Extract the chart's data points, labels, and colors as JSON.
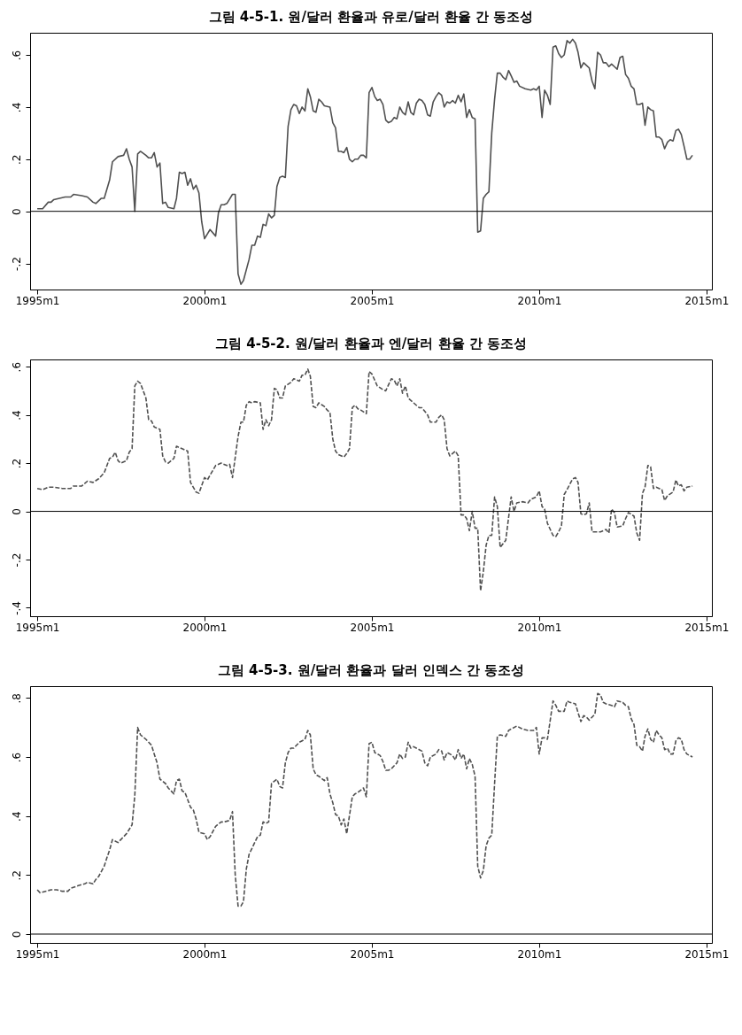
{
  "chart_data": [
    {
      "type": "line",
      "title": "그림 4-5-1. 원/달러 환율과 유로/달러 환율 간 동조성",
      "line_style": "solid",
      "x": [
        "1995-01",
        "1995-03",
        "1995-05",
        "1995-06",
        "1995-07",
        "1995-11",
        "1996-01",
        "1996-02",
        "1996-05",
        "1996-07",
        "1996-09",
        "1996-10",
        "1996-12",
        "1997-01",
        "1997-03",
        "1997-04",
        "1997-06",
        "1997-08",
        "1997-09",
        "1997-10",
        "1997-11",
        "1997-12",
        "1998-01",
        "1998-02",
        "1998-04",
        "1998-05",
        "1998-06",
        "1998-07",
        "1998-08",
        "1998-09",
        "1998-10",
        "1998-11",
        "1998-12",
        "1999-02",
        "1999-03",
        "1999-04",
        "1999-05",
        "1999-06",
        "1999-07",
        "1999-08",
        "1999-09",
        "1999-10",
        "1999-11",
        "1999-12",
        "2000-01",
        "2000-03",
        "2000-05",
        "2000-06",
        "2000-07",
        "2000-08",
        "2000-09",
        "2000-11",
        "2000-12",
        "2001-01",
        "2001-02",
        "2001-03",
        "2001-05",
        "2001-06",
        "2001-07",
        "2001-08",
        "2001-09",
        "2001-10",
        "2001-11",
        "2001-12",
        "2002-01",
        "2002-02",
        "2002-03",
        "2002-04",
        "2002-05",
        "2002-06",
        "2002-07",
        "2002-08",
        "2002-09",
        "2002-10",
        "2002-11",
        "2002-12",
        "2003-01",
        "2003-02",
        "2003-03",
        "2003-04",
        "2003-05",
        "2003-06",
        "2003-07",
        "2003-08",
        "2003-10",
        "2003-11",
        "2003-12",
        "2004-01",
        "2004-02",
        "2004-03",
        "2004-04",
        "2004-05",
        "2004-06",
        "2004-07",
        "2004-08",
        "2004-09",
        "2004-10",
        "2004-11",
        "2004-12",
        "2005-01",
        "2005-02",
        "2005-03",
        "2005-04",
        "2005-05",
        "2005-06",
        "2005-07",
        "2005-08",
        "2005-09",
        "2005-10",
        "2005-11",
        "2005-12",
        "2006-01",
        "2006-02",
        "2006-03",
        "2006-04",
        "2006-05",
        "2006-06",
        "2006-07",
        "2006-08",
        "2006-09",
        "2006-10",
        "2006-11",
        "2006-12",
        "2007-01",
        "2007-02",
        "2007-03",
        "2007-04",
        "2007-05",
        "2007-06",
        "2007-07",
        "2007-08",
        "2007-09",
        "2007-10",
        "2007-11",
        "2007-12",
        "2008-01",
        "2008-02",
        "2008-03",
        "2008-04",
        "2008-05",
        "2008-06",
        "2008-07",
        "2008-08",
        "2008-09",
        "2008-10",
        "2008-11",
        "2008-12",
        "2009-01",
        "2009-02",
        "2009-03",
        "2009-04",
        "2009-05",
        "2009-06",
        "2009-08",
        "2009-10",
        "2009-11",
        "2009-12",
        "2010-01",
        "2010-02",
        "2010-03",
        "2010-04",
        "2010-05",
        "2010-06",
        "2010-07",
        "2010-08",
        "2010-09",
        "2010-10",
        "2010-11",
        "2010-12",
        "2011-01",
        "2011-02",
        "2011-03",
        "2011-04",
        "2011-05",
        "2011-06",
        "2011-07",
        "2011-08",
        "2011-09",
        "2011-10",
        "2011-11",
        "2011-12",
        "2012-01",
        "2012-02",
        "2012-03",
        "2012-04",
        "2012-05",
        "2012-06",
        "2012-07",
        "2012-08",
        "2012-09",
        "2012-10",
        "2012-11",
        "2012-12",
        "2013-01",
        "2013-02",
        "2013-03",
        "2013-04",
        "2013-05",
        "2013-06",
        "2013-07",
        "2013-08",
        "2013-09",
        "2013-10",
        "2013-11",
        "2013-12",
        "2014-01",
        "2014-02",
        "2014-03",
        "2014-04",
        "2014-05",
        "2014-06",
        "2014-07",
        "2014-08"
      ],
      "series": [
        {
          "color": "#505050",
          "values": [
            0.01,
            0.01,
            0.035,
            0.035,
            0.045,
            0.055,
            0.055,
            0.065,
            0.06,
            0.055,
            0.035,
            0.03,
            0.05,
            0.05,
            0.12,
            0.19,
            0.21,
            0.215,
            0.24,
            0.2,
            0.17,
            0,
            0.22,
            0.23,
            0.215,
            0.205,
            0.205,
            0.225,
            0.17,
            0.185,
            0.03,
            0.035,
            0.015,
            0.01,
            0.05,
            0.15,
            0.145,
            0.15,
            0.1,
            0.125,
            0.085,
            0.1,
            0.07,
            -0.04,
            -0.105,
            -0.07,
            -0.095,
            -0.005,
            0.025,
            0.025,
            0.03,
            0.065,
            0.065,
            -0.24,
            -0.28,
            -0.265,
            -0.185,
            -0.13,
            -0.13,
            -0.095,
            -0.1,
            -0.05,
            -0.055,
            -0.01,
            -0.025,
            -0.015,
            0.095,
            0.13,
            0.135,
            0.13,
            0.325,
            0.39,
            0.41,
            0.405,
            0.375,
            0.4,
            0.385,
            0.47,
            0.44,
            0.385,
            0.38,
            0.43,
            0.42,
            0.405,
            0.4,
            0.34,
            0.32,
            0.23,
            0.23,
            0.225,
            0.245,
            0.2,
            0.19,
            0.2,
            0.2,
            0.215,
            0.215,
            0.205,
            0.455,
            0.475,
            0.44,
            0.425,
            0.43,
            0.41,
            0.35,
            0.34,
            0.345,
            0.36,
            0.355,
            0.4,
            0.38,
            0.37,
            0.42,
            0.38,
            0.37,
            0.415,
            0.43,
            0.425,
            0.41,
            0.37,
            0.365,
            0.42,
            0.44,
            0.455,
            0.445,
            0.4,
            0.42,
            0.415,
            0.425,
            0.415,
            0.445,
            0.42,
            0.45,
            0.36,
            0.39,
            0.36,
            0.355,
            -0.08,
            -0.075,
            0.05,
            0.065,
            0.075,
            0.3,
            0.43,
            0.53,
            0.53,
            0.515,
            0.505,
            0.54,
            0.52,
            0.495,
            0.5,
            0.48,
            0.47,
            0.465,
            0.47,
            0.465,
            0.48,
            0.36,
            0.465,
            0.445,
            0.41,
            0.63,
            0.635,
            0.605,
            0.59,
            0.6,
            0.655,
            0.645,
            0.66,
            0.645,
            0.61,
            0.55,
            0.57,
            0.56,
            0.55,
            0.5,
            0.47,
            0.61,
            0.6,
            0.57,
            0.57,
            0.555,
            0.565,
            0.555,
            0.545,
            0.59,
            0.595,
            0.525,
            0.51,
            0.48,
            0.47,
            0.41,
            0.41,
            0.415,
            0.33,
            0.4,
            0.39,
            0.385,
            0.285,
            0.285,
            0.275,
            0.24,
            0.265,
            0.275,
            0.27,
            0.31,
            0.315,
            0.295,
            0.25,
            0.2,
            0.2,
            0.215
          ]
        }
      ],
      "xlim": [
        "1994-10-15",
        "2015-03-01"
      ],
      "xticks": [
        {
          "value": "1995-01",
          "label": "1995m1"
        },
        {
          "value": "2000-01",
          "label": "2000m1"
        },
        {
          "value": "2005-01",
          "label": "2005m1"
        },
        {
          "value": "2010-01",
          "label": "2010m1"
        },
        {
          "value": "2015-01",
          "label": "2015m1"
        }
      ],
      "ylim": [
        -0.3,
        0.685
      ],
      "yticks": [
        {
          "value": -0.2,
          "label": "-.2"
        },
        {
          "value": 0,
          "label": "0"
        },
        {
          "value": 0.2,
          "label": ".2"
        },
        {
          "value": 0.4,
          "label": ".4"
        },
        {
          "value": 0.6,
          "label": ".6"
        }
      ],
      "ref_lines": [
        {
          "axis": "y",
          "value": 0,
          "color": "#000000"
        }
      ]
    },
    {
      "type": "line",
      "title": "그림 4-5-2. 원/달러 환율과 엔/달러 환율 간 동조성",
      "line_style": "dashed",
      "x": [
        "1995-01",
        "1995-03",
        "1995-05",
        "1995-07",
        "1995-10",
        "1996-01",
        "1996-02",
        "1996-05",
        "1996-07",
        "1996-09",
        "1996-11",
        "1997-01",
        "1997-03",
        "1997-04",
        "1997-05",
        "1997-06",
        "1997-07",
        "1997-09",
        "1997-10",
        "1997-11",
        "1997-12",
        "1998-01",
        "1998-02",
        "1998-04",
        "1998-05",
        "1998-06",
        "1998-07",
        "1998-09",
        "1998-10",
        "1998-11",
        "1998-12",
        "1999-02",
        "1999-03",
        "1999-05",
        "1999-07",
        "1999-08",
        "1999-10",
        "1999-11",
        "2000-01",
        "2000-02",
        "2000-03",
        "2000-05",
        "2000-07",
        "2000-08",
        "2000-09",
        "2000-10",
        "2000-11",
        "2001-01",
        "2001-02",
        "2001-03",
        "2001-04",
        "2001-05",
        "2001-06",
        "2001-07",
        "2001-09",
        "2001-10",
        "2001-11",
        "2001-12",
        "2002-01",
        "2002-02",
        "2002-03",
        "2002-04",
        "2002-05",
        "2002-06",
        "2002-08",
        "2002-09",
        "2002-11",
        "2002-12",
        "2003-01",
        "2003-02",
        "2003-03",
        "2003-04",
        "2003-05",
        "2003-06",
        "2003-08",
        "2003-09",
        "2003-10",
        "2003-11",
        "2003-12",
        "2004-01",
        "2004-03",
        "2004-04",
        "2004-05",
        "2004-06",
        "2004-07",
        "2004-08",
        "2004-09",
        "2004-11",
        "2004-12",
        "2005-01",
        "2005-03",
        "2005-05",
        "2005-06",
        "2005-08",
        "2005-09",
        "2005-10",
        "2005-11",
        "2005-12",
        "2006-01",
        "2006-02",
        "2006-04",
        "2006-05",
        "2006-06",
        "2006-07",
        "2006-09",
        "2006-10",
        "2006-12",
        "2007-01",
        "2007-02",
        "2007-03",
        "2007-04",
        "2007-05",
        "2007-07",
        "2007-08",
        "2007-09",
        "2007-10",
        "2007-11",
        "2007-12",
        "2008-01",
        "2008-02",
        "2008-03",
        "2008-04",
        "2008-05",
        "2008-06",
        "2008-07",
        "2008-08",
        "2008-09",
        "2008-10",
        "2008-11",
        "2008-12",
        "2009-01",
        "2009-03",
        "2009-04",
        "2009-05",
        "2009-07",
        "2009-09",
        "2009-10",
        "2009-12",
        "2010-01",
        "2010-02",
        "2010-03",
        "2010-04",
        "2010-06",
        "2010-07",
        "2010-08",
        "2010-09",
        "2010-10",
        "2010-11",
        "2011-01",
        "2011-02",
        "2011-03",
        "2011-04",
        "2011-05",
        "2011-06",
        "2011-07",
        "2011-08",
        "2011-09",
        "2011-11",
        "2012-01",
        "2012-02",
        "2012-03",
        "2012-04",
        "2012-05",
        "2012-07",
        "2012-08",
        "2012-09",
        "2012-11",
        "2012-12",
        "2013-01",
        "2013-02",
        "2013-03",
        "2013-04",
        "2013-05",
        "2013-06",
        "2013-07",
        "2013-09",
        "2013-10",
        "2013-11",
        "2014-01",
        "2014-02",
        "2014-03",
        "2014-04",
        "2014-05",
        "2014-06",
        "2014-08"
      ],
      "series": [
        {
          "color": "#505050",
          "values": [
            0.095,
            0.09,
            0.1,
            0.1,
            0.095,
            0.095,
            0.105,
            0.105,
            0.125,
            0.12,
            0.135,
            0.16,
            0.22,
            0.225,
            0.245,
            0.21,
            0.2,
            0.21,
            0.245,
            0.26,
            0.52,
            0.54,
            0.53,
            0.47,
            0.38,
            0.375,
            0.35,
            0.34,
            0.23,
            0.205,
            0.2,
            0.22,
            0.27,
            0.26,
            0.25,
            0.12,
            0.08,
            0.075,
            0.14,
            0.13,
            0.15,
            0.19,
            0.2,
            0.195,
            0.19,
            0.195,
            0.14,
            0.31,
            0.37,
            0.37,
            0.44,
            0.455,
            0.45,
            0.455,
            0.45,
            0.34,
            0.38,
            0.355,
            0.38,
            0.51,
            0.505,
            0.47,
            0.47,
            0.52,
            0.535,
            0.55,
            0.54,
            0.565,
            0.565,
            0.59,
            0.56,
            0.435,
            0.43,
            0.45,
            0.435,
            0.42,
            0.41,
            0.3,
            0.25,
            0.235,
            0.225,
            0.24,
            0.26,
            0.43,
            0.44,
            0.425,
            0.42,
            0.405,
            0.58,
            0.57,
            0.52,
            0.505,
            0.5,
            0.55,
            0.545,
            0.52,
            0.55,
            0.49,
            0.52,
            0.47,
            0.45,
            0.44,
            0.43,
            0.43,
            0.4,
            0.37,
            0.37,
            0.39,
            0.4,
            0.38,
            0.26,
            0.23,
            0.25,
            0.23,
            -0.015,
            -0.015,
            -0.03,
            -0.08,
            0,
            -0.07,
            -0.07,
            -0.33,
            -0.25,
            -0.14,
            -0.1,
            -0.1,
            0.06,
            0.02,
            -0.15,
            -0.135,
            -0.12,
            0.06,
            0,
            0.035,
            0.04,
            0.035,
            0.05,
            0.06,
            0.085,
            0.02,
            0.01,
            -0.05,
            -0.1,
            -0.105,
            -0.085,
            -0.06,
            0.07,
            0.09,
            0.135,
            0.14,
            0.12,
            -0.01,
            -0.015,
            -0.01,
            0.035,
            -0.085,
            -0.085,
            -0.085,
            -0.075,
            -0.09,
            0.01,
            -0.005,
            -0.065,
            -0.06,
            -0.03,
            -0.005,
            -0.02,
            -0.09,
            -0.12,
            0.075,
            0.1,
            0.19,
            0.185,
            0.095,
            0.1,
            0.09,
            0.045,
            0.065,
            0.08,
            0.13,
            0.105,
            0.11,
            0.085,
            0.1,
            0.105
          ]
        }
      ],
      "xlim": [
        "1994-10-15",
        "2015-03-01"
      ],
      "xticks": [
        {
          "value": "1995-01",
          "label": "1995m1"
        },
        {
          "value": "2000-01",
          "label": "2000m1"
        },
        {
          "value": "2005-01",
          "label": "2005m1"
        },
        {
          "value": "2010-01",
          "label": "2010m1"
        },
        {
          "value": "2015-01",
          "label": "2015m1"
        }
      ],
      "ylim": [
        -0.435,
        0.63
      ],
      "yticks": [
        {
          "value": -0.4,
          "label": "-.4"
        },
        {
          "value": -0.2,
          "label": "-.2"
        },
        {
          "value": 0,
          "label": "0"
        },
        {
          "value": 0.2,
          "label": ".2"
        },
        {
          "value": 0.4,
          "label": ".4"
        },
        {
          "value": 0.6,
          "label": ".6"
        }
      ],
      "ref_lines": [
        {
          "axis": "y",
          "value": 0,
          "color": "#000000"
        }
      ]
    },
    {
      "type": "line",
      "title": "그림 4-5-3. 원/달러 환율과 달러 인덱스 간 동조성",
      "line_style": "dashed",
      "x": [
        "1995-01",
        "1995-02",
        "1995-04",
        "1995-06",
        "1995-08",
        "1995-10",
        "1995-12",
        "1996-01",
        "1996-04",
        "1996-06",
        "1996-07",
        "1996-09",
        "1996-10",
        "1996-11",
        "1997-01",
        "1997-02",
        "1997-03",
        "1997-04",
        "1997-06",
        "1997-07",
        "1997-09",
        "1997-11",
        "1997-12",
        "1998-01",
        "1998-02",
        "1998-04",
        "1998-06",
        "1998-07",
        "1998-08",
        "1998-09",
        "1998-11",
        "1998-12",
        "1999-02",
        "1999-03",
        "1999-04",
        "1999-05",
        "1999-06",
        "1999-08",
        "1999-09",
        "1999-10",
        "1999-11",
        "2000-01",
        "2000-02",
        "2000-03",
        "2000-05",
        "2000-07",
        "2000-08",
        "2000-10",
        "2000-11",
        "2000-12",
        "2001-01",
        "2001-02",
        "2001-03",
        "2001-04",
        "2001-05",
        "2001-06",
        "2001-08",
        "2001-09",
        "2001-10",
        "2001-11",
        "2001-12",
        "2002-01",
        "2002-03",
        "2002-04",
        "2002-05",
        "2002-06",
        "2002-07",
        "2002-08",
        "2002-09",
        "2002-11",
        "2003-01",
        "2003-02",
        "2003-03",
        "2003-04",
        "2003-05",
        "2003-06",
        "2003-08",
        "2003-09",
        "2003-10",
        "2003-11",
        "2003-12",
        "2004-01",
        "2004-02",
        "2004-03",
        "2004-04",
        "2004-06",
        "2004-07",
        "2004-08",
        "2004-10",
        "2004-11",
        "2004-12",
        "2005-01",
        "2005-02",
        "2005-04",
        "2005-05",
        "2005-06",
        "2005-07",
        "2005-08",
        "2005-10",
        "2005-11",
        "2005-12",
        "2006-01",
        "2006-02",
        "2006-03",
        "2006-04",
        "2006-05",
        "2006-07",
        "2006-08",
        "2006-09",
        "2006-10",
        "2006-12",
        "2007-01",
        "2007-02",
        "2007-03",
        "2007-04",
        "2007-06",
        "2007-07",
        "2007-08",
        "2007-09",
        "2007-10",
        "2007-11",
        "2007-12",
        "2008-01",
        "2008-02",
        "2008-03",
        "2008-04",
        "2008-05",
        "2008-06",
        "2008-07",
        "2008-08",
        "2008-09",
        "2008-10",
        "2008-11",
        "2009-01",
        "2009-02",
        "2009-03",
        "2009-05",
        "2009-07",
        "2009-09",
        "2009-11",
        "2009-12",
        "2010-01",
        "2010-02",
        "2010-03",
        "2010-04",
        "2010-06",
        "2010-07",
        "2010-08",
        "2010-10",
        "2010-11",
        "2010-12",
        "2011-02",
        "2011-03",
        "2011-04",
        "2011-05",
        "2011-06",
        "2011-07",
        "2011-09",
        "2011-10",
        "2011-11",
        "2011-12",
        "2012-01",
        "2012-03",
        "2012-04",
        "2012-05",
        "2012-07",
        "2012-08",
        "2012-09",
        "2012-10",
        "2012-11",
        "2012-12",
        "2013-01",
        "2013-02",
        "2013-03",
        "2013-04",
        "2013-05",
        "2013-06",
        "2013-07",
        "2013-08",
        "2013-09",
        "2013-10",
        "2013-11",
        "2013-12",
        "2014-01",
        "2014-02",
        "2014-03",
        "2014-04",
        "2014-05",
        "2014-06",
        "2014-08"
      ],
      "series": [
        {
          "color": "#505050",
          "values": [
            0.15,
            0.14,
            0.145,
            0.15,
            0.15,
            0.145,
            0.145,
            0.155,
            0.165,
            0.17,
            0.175,
            0.17,
            0.185,
            0.195,
            0.23,
            0.26,
            0.285,
            0.32,
            0.31,
            0.32,
            0.34,
            0.37,
            0.47,
            0.7,
            0.675,
            0.66,
            0.64,
            0.61,
            0.58,
            0.525,
            0.51,
            0.495,
            0.475,
            0.52,
            0.525,
            0.485,
            0.48,
            0.43,
            0.42,
            0.39,
            0.345,
            0.34,
            0.32,
            0.33,
            0.365,
            0.38,
            0.38,
            0.385,
            0.415,
            0.2,
            0.095,
            0.095,
            0.11,
            0.22,
            0.27,
            0.29,
            0.33,
            0.335,
            0.38,
            0.375,
            0.38,
            0.51,
            0.525,
            0.5,
            0.495,
            0.58,
            0.615,
            0.63,
            0.63,
            0.65,
            0.66,
            0.69,
            0.675,
            0.56,
            0.54,
            0.535,
            0.52,
            0.53,
            0.475,
            0.445,
            0.405,
            0.4,
            0.37,
            0.39,
            0.34,
            0.465,
            0.475,
            0.48,
            0.495,
            0.465,
            0.645,
            0.65,
            0.615,
            0.605,
            0.585,
            0.555,
            0.555,
            0.56,
            0.58,
            0.61,
            0.595,
            0.6,
            0.65,
            0.63,
            0.635,
            0.63,
            0.62,
            0.58,
            0.57,
            0.6,
            0.61,
            0.625,
            0.62,
            0.59,
            0.615,
            0.605,
            0.59,
            0.625,
            0.595,
            0.61,
            0.56,
            0.595,
            0.575,
            0.535,
            0.23,
            0.19,
            0.215,
            0.3,
            0.325,
            0.335,
            0.51,
            0.67,
            0.675,
            0.67,
            0.69,
            0.695,
            0.705,
            0.695,
            0.69,
            0.69,
            0.7,
            0.61,
            0.665,
            0.665,
            0.66,
            0.79,
            0.775,
            0.755,
            0.755,
            0.79,
            0.785,
            0.78,
            0.75,
            0.72,
            0.74,
            0.735,
            0.725,
            0.745,
            0.815,
            0.81,
            0.785,
            0.78,
            0.775,
            0.77,
            0.79,
            0.785,
            0.775,
            0.77,
            0.73,
            0.71,
            0.64,
            0.635,
            0.62,
            0.67,
            0.695,
            0.66,
            0.65,
            0.69,
            0.675,
            0.665,
            0.625,
            0.63,
            0.61,
            0.61,
            0.655,
            0.665,
            0.66,
            0.625,
            0.61,
            0.6
          ]
        }
      ],
      "xlim": [
        "1994-10-15",
        "2015-03-01"
      ],
      "xticks": [
        {
          "value": "1995-01",
          "label": "1995m1"
        },
        {
          "value": "2000-01",
          "label": "2000m1"
        },
        {
          "value": "2005-01",
          "label": "2005m1"
        },
        {
          "value": "2010-01",
          "label": "2010m1"
        },
        {
          "value": "2015-01",
          "label": "2015m1"
        }
      ],
      "ylim": [
        -0.03,
        0.84
      ],
      "yticks": [
        {
          "value": 0,
          "label": "0"
        },
        {
          "value": 0.2,
          "label": ".2"
        },
        {
          "value": 0.4,
          "label": ".4"
        },
        {
          "value": 0.6,
          "label": ".6"
        },
        {
          "value": 0.8,
          "label": ".8"
        }
      ],
      "ref_lines": [
        {
          "axis": "y",
          "value": 0,
          "color": "#000000"
        }
      ]
    }
  ]
}
